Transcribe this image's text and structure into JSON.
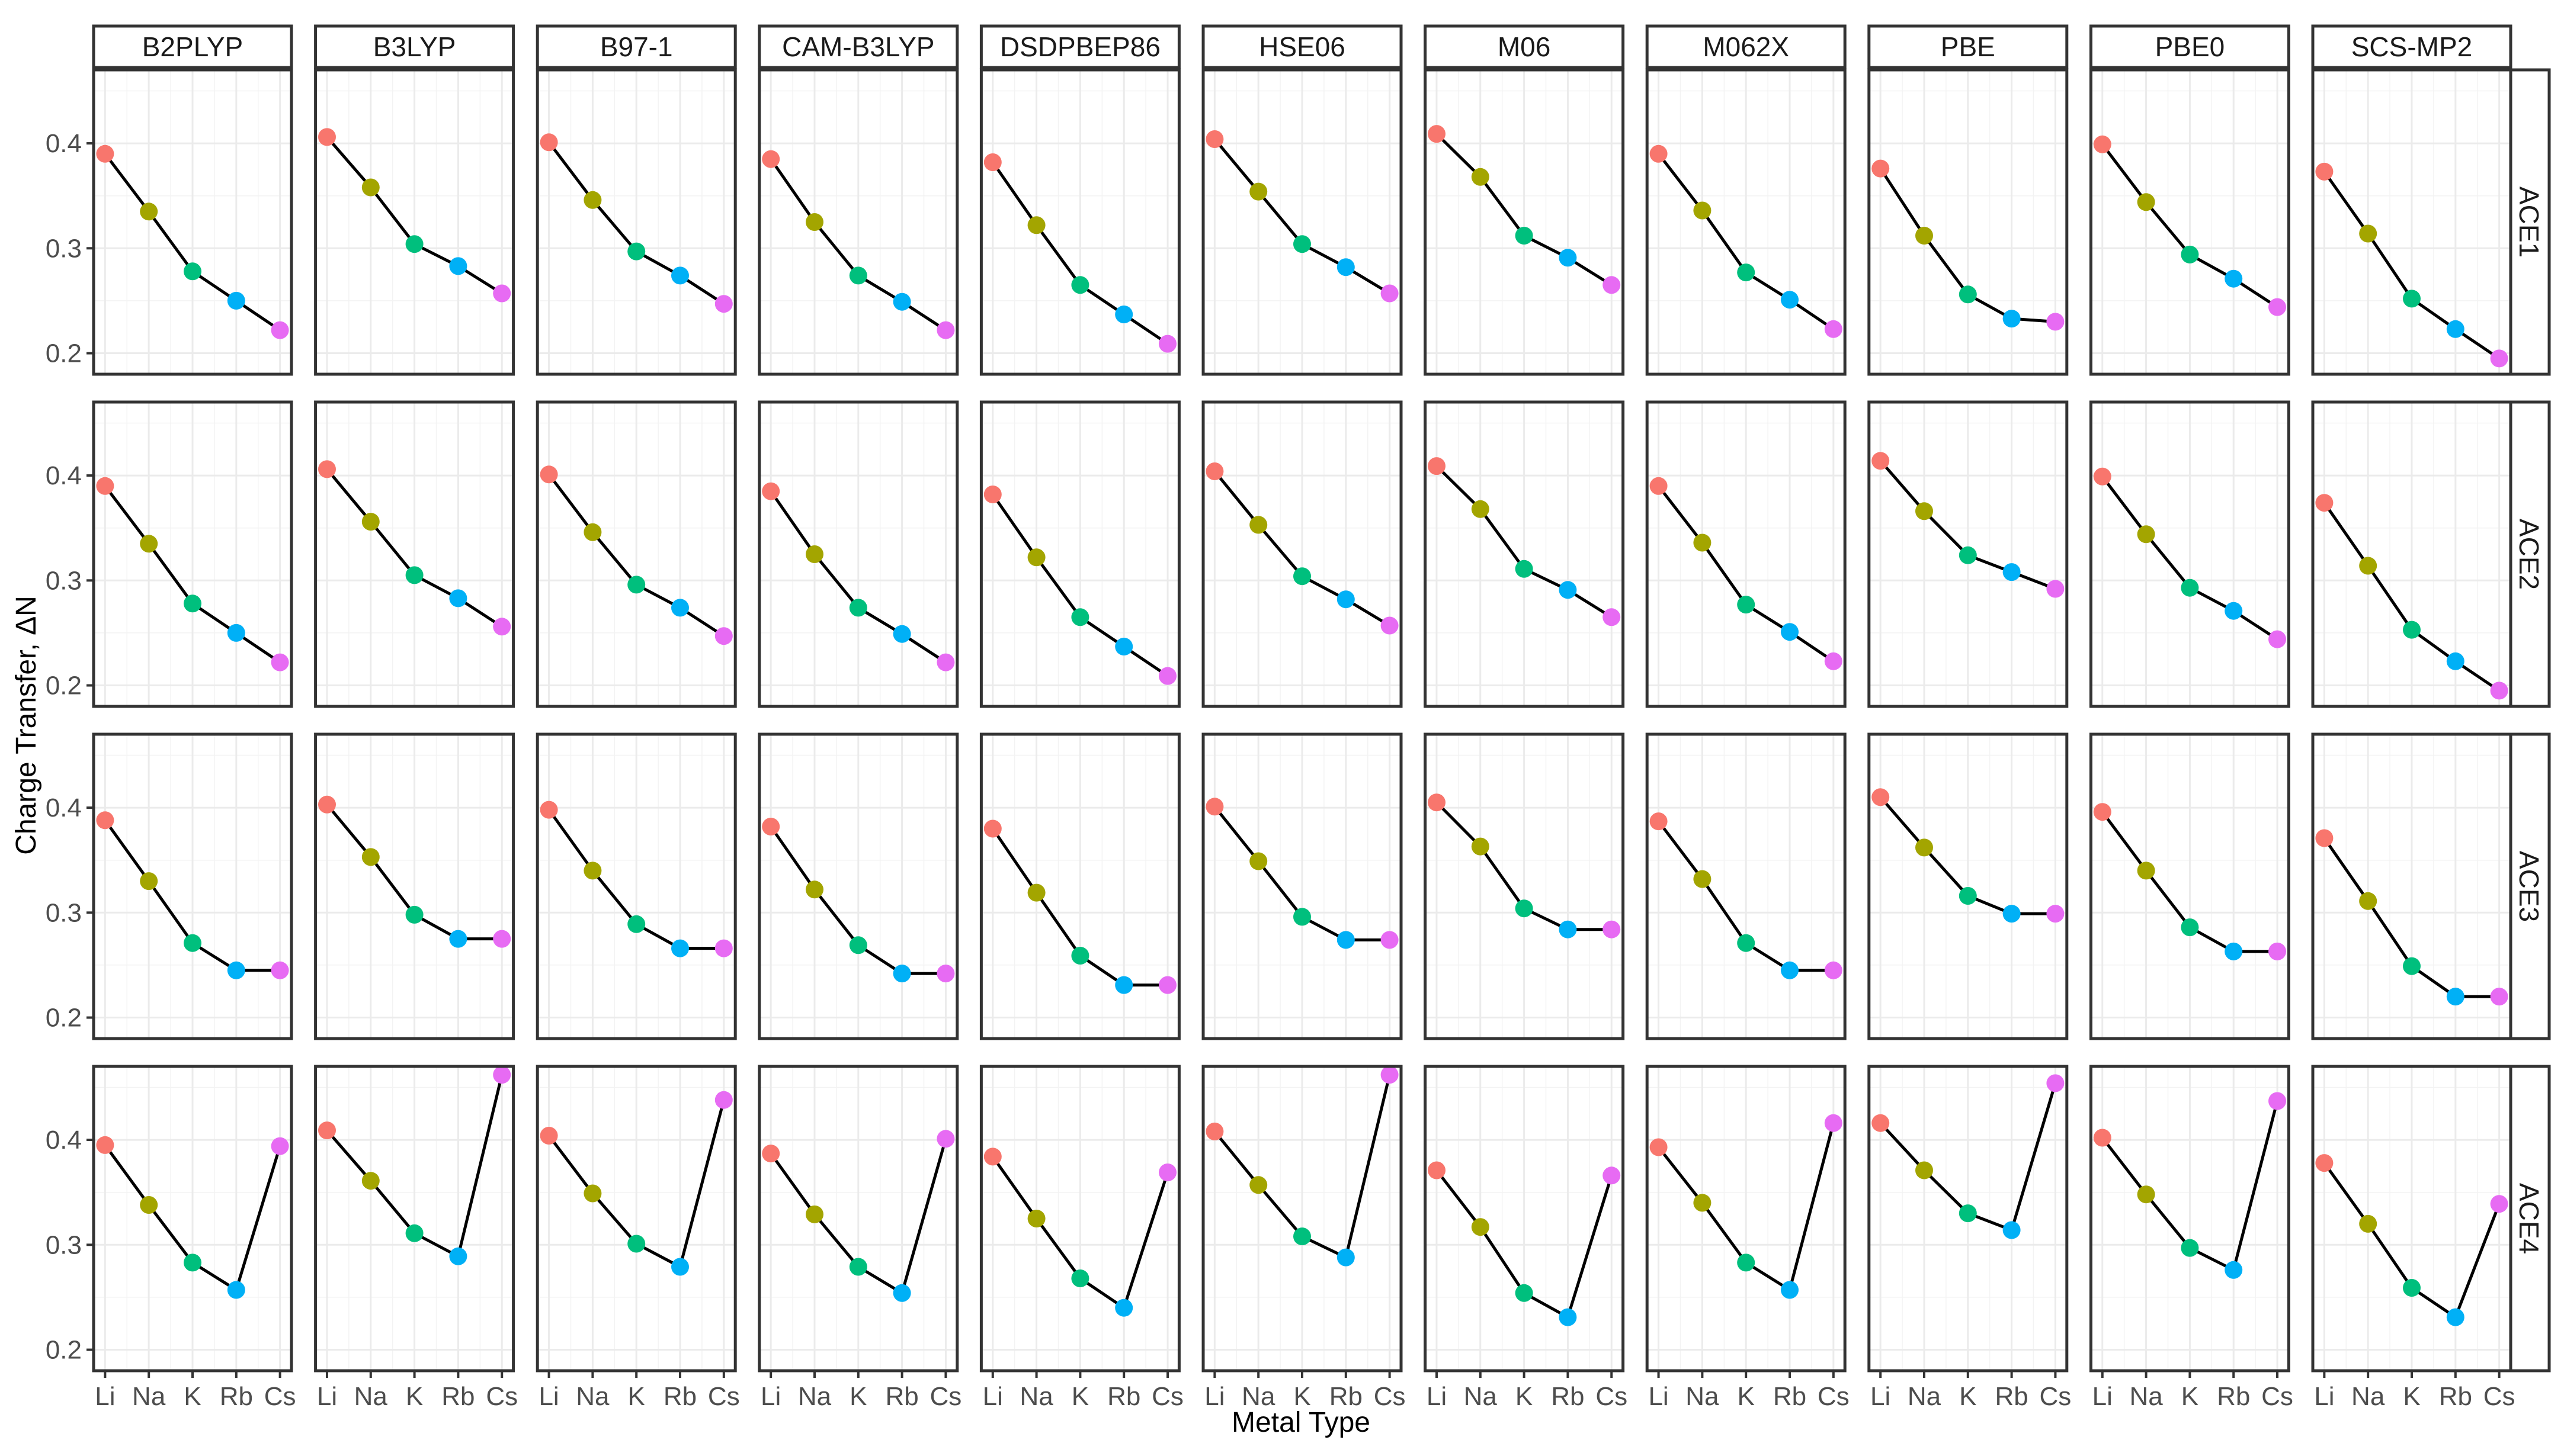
{
  "chart_data": {
    "type": "line",
    "layout": "facet_grid",
    "title": "",
    "xlabel": "Metal Type",
    "ylabel": "Charge Transfer, ΔN",
    "categories": [
      "Li",
      "Na",
      "K",
      "Rb",
      "Cs"
    ],
    "category_colors": [
      "#F8766D",
      "#A3A500",
      "#00BF7D",
      "#00B0F6",
      "#E76BF3"
    ],
    "ylim": [
      0.18,
      0.47
    ],
    "yticks": [
      0.2,
      0.3,
      0.4
    ],
    "ytick_labels": [
      "0.2",
      "0.3",
      "0.4"
    ],
    "columns": [
      "B2PLYP",
      "B3LYP",
      "B97-1",
      "CAM-B3LYP",
      "DSDPBEP86",
      "HSE06",
      "M06",
      "M062X",
      "PBE",
      "PBE0",
      "SCS-MP2"
    ],
    "rows": [
      "ACE1",
      "ACE2",
      "ACE3",
      "ACE4"
    ],
    "series": [
      {
        "row": "ACE1",
        "name": "B2PLYP",
        "values": [
          0.39,
          0.335,
          0.278,
          0.25,
          0.222
        ]
      },
      {
        "row": "ACE1",
        "name": "B3LYP",
        "values": [
          0.406,
          0.358,
          0.304,
          0.283,
          0.257
        ]
      },
      {
        "row": "ACE1",
        "name": "B97-1",
        "values": [
          0.401,
          0.346,
          0.297,
          0.274,
          0.247
        ]
      },
      {
        "row": "ACE1",
        "name": "CAM-B3LYP",
        "values": [
          0.385,
          0.325,
          0.274,
          0.249,
          0.222
        ]
      },
      {
        "row": "ACE1",
        "name": "DSDPBEP86",
        "values": [
          0.382,
          0.322,
          0.265,
          0.237,
          0.209
        ]
      },
      {
        "row": "ACE1",
        "name": "HSE06",
        "values": [
          0.404,
          0.354,
          0.304,
          0.282,
          0.257
        ]
      },
      {
        "row": "ACE1",
        "name": "M06",
        "values": [
          0.409,
          0.368,
          0.312,
          0.291,
          0.265
        ]
      },
      {
        "row": "ACE1",
        "name": "M062X",
        "values": [
          0.39,
          0.336,
          0.277,
          0.251,
          0.223
        ]
      },
      {
        "row": "ACE1",
        "name": "PBE",
        "values": [
          0.376,
          0.312,
          0.256,
          0.233,
          0.23
        ]
      },
      {
        "row": "ACE1",
        "name": "PBE0",
        "values": [
          0.399,
          0.344,
          0.294,
          0.271,
          0.244
        ]
      },
      {
        "row": "ACE1",
        "name": "SCS-MP2",
        "values": [
          0.373,
          0.314,
          0.252,
          0.223,
          0.195
        ]
      },
      {
        "row": "ACE2",
        "name": "B2PLYP",
        "values": [
          0.39,
          0.335,
          0.278,
          0.25,
          0.222
        ]
      },
      {
        "row": "ACE2",
        "name": "B3LYP",
        "values": [
          0.406,
          0.356,
          0.305,
          0.283,
          0.256
        ]
      },
      {
        "row": "ACE2",
        "name": "B97-1",
        "values": [
          0.401,
          0.346,
          0.296,
          0.274,
          0.247
        ]
      },
      {
        "row": "ACE2",
        "name": "CAM-B3LYP",
        "values": [
          0.385,
          0.325,
          0.274,
          0.249,
          0.222
        ]
      },
      {
        "row": "ACE2",
        "name": "DSDPBEP86",
        "values": [
          0.382,
          0.322,
          0.265,
          0.237,
          0.209
        ]
      },
      {
        "row": "ACE2",
        "name": "HSE06",
        "values": [
          0.404,
          0.353,
          0.304,
          0.282,
          0.257
        ]
      },
      {
        "row": "ACE2",
        "name": "M06",
        "values": [
          0.409,
          0.368,
          0.311,
          0.291,
          0.265
        ]
      },
      {
        "row": "ACE2",
        "name": "M062X",
        "values": [
          0.39,
          0.336,
          0.277,
          0.251,
          0.223
        ]
      },
      {
        "row": "ACE2",
        "name": "PBE",
        "values": [
          0.414,
          0.366,
          0.324,
          0.308,
          0.292
        ]
      },
      {
        "row": "ACE2",
        "name": "PBE0",
        "values": [
          0.399,
          0.344,
          0.293,
          0.271,
          0.244
        ]
      },
      {
        "row": "ACE2",
        "name": "SCS-MP2",
        "values": [
          0.374,
          0.314,
          0.253,
          0.223,
          0.195
        ]
      },
      {
        "row": "ACE3",
        "name": "B2PLYP",
        "values": [
          0.388,
          0.33,
          0.271,
          0.245,
          0.245
        ]
      },
      {
        "row": "ACE3",
        "name": "B3LYP",
        "values": [
          0.403,
          0.353,
          0.298,
          0.275,
          0.275
        ]
      },
      {
        "row": "ACE3",
        "name": "B97-1",
        "values": [
          0.398,
          0.34,
          0.289,
          0.266,
          0.266
        ]
      },
      {
        "row": "ACE3",
        "name": "CAM-B3LYP",
        "values": [
          0.382,
          0.322,
          0.269,
          0.242,
          0.242
        ]
      },
      {
        "row": "ACE3",
        "name": "DSDPBEP86",
        "values": [
          0.38,
          0.319,
          0.259,
          0.231,
          0.231
        ]
      },
      {
        "row": "ACE3",
        "name": "HSE06",
        "values": [
          0.401,
          0.349,
          0.296,
          0.274,
          0.274
        ]
      },
      {
        "row": "ACE3",
        "name": "M06",
        "values": [
          0.405,
          0.363,
          0.304,
          0.284,
          0.284
        ]
      },
      {
        "row": "ACE3",
        "name": "M062X",
        "values": [
          0.387,
          0.332,
          0.271,
          0.245,
          0.245
        ]
      },
      {
        "row": "ACE3",
        "name": "PBE",
        "values": [
          0.41,
          0.362,
          0.316,
          0.299,
          0.299
        ]
      },
      {
        "row": "ACE3",
        "name": "PBE0",
        "values": [
          0.396,
          0.34,
          0.286,
          0.263,
          0.263
        ]
      },
      {
        "row": "ACE3",
        "name": "SCS-MP2",
        "values": [
          0.371,
          0.311,
          0.249,
          0.22,
          0.22
        ]
      },
      {
        "row": "ACE4",
        "name": "B2PLYP",
        "values": [
          0.395,
          0.338,
          0.283,
          0.257,
          0.394
        ]
      },
      {
        "row": "ACE4",
        "name": "B3LYP",
        "values": [
          0.409,
          0.361,
          0.311,
          0.289,
          0.462
        ]
      },
      {
        "row": "ACE4",
        "name": "B97-1",
        "values": [
          0.404,
          0.349,
          0.301,
          0.279,
          0.438
        ]
      },
      {
        "row": "ACE4",
        "name": "CAM-B3LYP",
        "values": [
          0.387,
          0.329,
          0.279,
          0.254,
          0.401
        ]
      },
      {
        "row": "ACE4",
        "name": "DSDPBEP86",
        "values": [
          0.384,
          0.325,
          0.268,
          0.24,
          0.369
        ]
      },
      {
        "row": "ACE4",
        "name": "HSE06",
        "values": [
          0.408,
          0.357,
          0.308,
          0.288,
          0.462
        ]
      },
      {
        "row": "ACE4",
        "name": "M06",
        "values": [
          0.371,
          0.317,
          0.254,
          0.231,
          0.366
        ]
      },
      {
        "row": "ACE4",
        "name": "M062X",
        "values": [
          0.393,
          0.34,
          0.283,
          0.257,
          0.416
        ]
      },
      {
        "row": "ACE4",
        "name": "PBE",
        "values": [
          0.416,
          0.371,
          0.33,
          0.314,
          0.454
        ]
      },
      {
        "row": "ACE4",
        "name": "PBE0",
        "values": [
          0.402,
          0.348,
          0.297,
          0.276,
          0.437
        ]
      },
      {
        "row": "ACE4",
        "name": "SCS-MP2",
        "values": [
          0.378,
          0.32,
          0.259,
          0.231,
          0.339
        ]
      }
    ],
    "grid": true,
    "legend": "none"
  }
}
